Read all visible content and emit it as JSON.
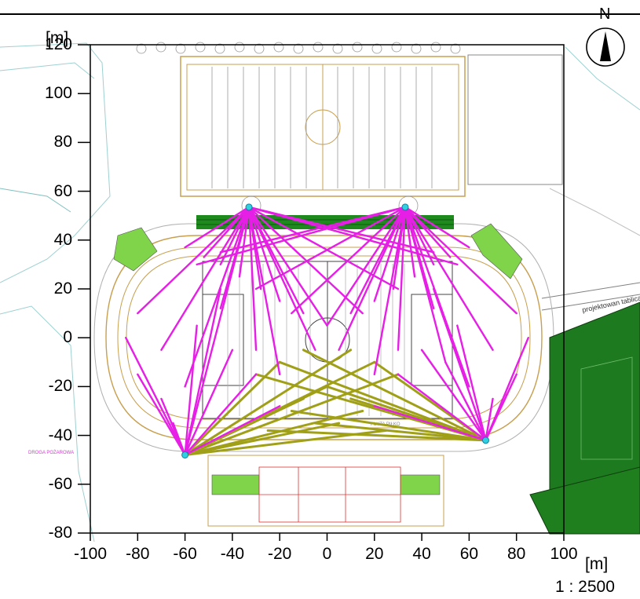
{
  "axes": {
    "y_unit": "[m]",
    "x_unit": "[m]",
    "y_ticks": [
      "120",
      "100",
      "80",
      "60",
      "40",
      "20",
      "0",
      "-20",
      "-40",
      "-60",
      "-80"
    ],
    "x_ticks": [
      "-100",
      "-80",
      "-60",
      "-40",
      "-20",
      "0",
      "20",
      "40",
      "60",
      "80",
      "100"
    ],
    "x_range": [
      -100,
      100
    ],
    "y_range": [
      -80,
      120
    ],
    "scale": "1 : 2500"
  },
  "north_label": "N",
  "plan_text": {
    "scoreboard_label": "projektowan tablica wyników",
    "fire_road": "DROGA POŻAROWA",
    "pitch_label": "PŁYTA PIŁKO"
  },
  "colors": {
    "light_beam": "#e61ee6",
    "olive_beam": "#a0a018",
    "plan_line": "#c8a050",
    "panel_green": "#1e7a1e"
  },
  "light_masts": {
    "north_west": [
      -33,
      53.5
    ],
    "north_east": [
      33,
      53.5
    ],
    "south_west": [
      -60,
      -48
    ],
    "south_east": [
      67,
      -42
    ]
  },
  "magenta_targets_north": [
    [
      -60,
      37
    ],
    [
      -52,
      33
    ],
    [
      -45,
      30
    ],
    [
      -37,
      25
    ],
    [
      -28,
      20
    ],
    [
      -20,
      15
    ],
    [
      -10,
      10
    ],
    [
      0,
      5
    ],
    [
      -45,
      12
    ],
    [
      -30,
      -5
    ],
    [
      -20,
      -15
    ],
    [
      -5,
      -5
    ],
    [
      15,
      10
    ],
    [
      30,
      20
    ],
    [
      45,
      35
    ],
    [
      55,
      30
    ],
    [
      -80,
      10
    ],
    [
      -70,
      -5
    ],
    [
      -60,
      -20
    ],
    [
      -50,
      -10
    ]
  ],
  "magenta_targets_north_east": [
    [
      60,
      37
    ],
    [
      52,
      33
    ],
    [
      45,
      30
    ],
    [
      37,
      25
    ],
    [
      28,
      20
    ],
    [
      20,
      15
    ],
    [
      10,
      10
    ],
    [
      0,
      5
    ],
    [
      45,
      12
    ],
    [
      30,
      -5
    ],
    [
      20,
      -15
    ],
    [
      5,
      -5
    ],
    [
      -15,
      10
    ],
    [
      -30,
      20
    ],
    [
      -45,
      35
    ],
    [
      -55,
      30
    ],
    [
      80,
      10
    ],
    [
      70,
      -5
    ],
    [
      60,
      -20
    ],
    [
      50,
      -10
    ]
  ],
  "magenta_targets_south_west": [
    [
      -85,
      0
    ],
    [
      -80,
      -15
    ],
    [
      -70,
      -25
    ],
    [
      -50,
      -10
    ],
    [
      -40,
      -5
    ],
    [
      -30,
      -15
    ],
    [
      -20,
      -28
    ],
    [
      -55,
      5
    ],
    [
      -45,
      20
    ],
    [
      -65,
      -35
    ]
  ],
  "magenta_targets_south_east": [
    [
      85,
      0
    ],
    [
      80,
      -15
    ],
    [
      70,
      -25
    ],
    [
      50,
      -10
    ],
    [
      40,
      -5
    ],
    [
      30,
      -15
    ],
    [
      20,
      -28
    ],
    [
      55,
      5
    ],
    [
      45,
      20
    ],
    [
      65,
      -35
    ]
  ],
  "olive_targets_south_west": [
    [
      10,
      -5
    ],
    [
      20,
      -10
    ],
    [
      30,
      -15
    ],
    [
      0,
      -20
    ],
    [
      -10,
      -25
    ],
    [
      15,
      -30
    ],
    [
      -20,
      -10
    ],
    [
      5,
      -35
    ],
    [
      25,
      -38
    ]
  ],
  "olive_targets_south_east": [
    [
      -10,
      -5
    ],
    [
      -20,
      -10
    ],
    [
      -30,
      -15
    ],
    [
      0,
      -20
    ],
    [
      10,
      -25
    ],
    [
      -15,
      -30
    ],
    [
      20,
      -10
    ],
    [
      -5,
      -35
    ],
    [
      -25,
      -38
    ]
  ]
}
